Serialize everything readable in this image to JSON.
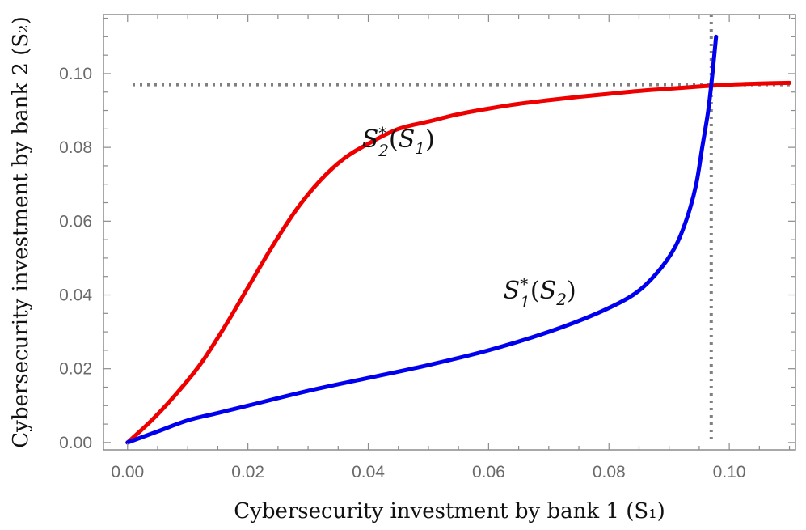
{
  "chart_data": {
    "type": "line",
    "xlabel": "Cybersecurity investment by bank 1 (S₁)",
    "ylabel": "Cybersecurity investment by bank 2 (S₂)",
    "xlim": [
      -0.004,
      0.111
    ],
    "ylim": [
      -0.002,
      0.116
    ],
    "x_ticks": [
      0.0,
      0.02,
      0.04,
      0.06,
      0.08,
      0.1
    ],
    "x_tick_labels": [
      "0.00",
      "0.02",
      "0.04",
      "0.06",
      "0.08",
      "0.10"
    ],
    "y_ticks": [
      0.0,
      0.02,
      0.04,
      0.06,
      0.08,
      0.1
    ],
    "y_tick_labels": [
      "0.00",
      "0.02",
      "0.04",
      "0.06",
      "0.08",
      "0.10"
    ],
    "grid": false,
    "series": [
      {
        "name": "S₂*(S₁)",
        "color": "#ee0000",
        "points": [
          [
            0.0,
            0.0
          ],
          [
            0.004,
            0.006
          ],
          [
            0.008,
            0.013
          ],
          [
            0.012,
            0.021
          ],
          [
            0.016,
            0.031
          ],
          [
            0.02,
            0.042
          ],
          [
            0.024,
            0.053
          ],
          [
            0.028,
            0.063
          ],
          [
            0.032,
            0.071
          ],
          [
            0.036,
            0.077
          ],
          [
            0.04,
            0.081
          ],
          [
            0.045,
            0.085
          ],
          [
            0.05,
            0.087
          ],
          [
            0.055,
            0.089
          ],
          [
            0.06,
            0.0905
          ],
          [
            0.065,
            0.0918
          ],
          [
            0.07,
            0.0928
          ],
          [
            0.075,
            0.0937
          ],
          [
            0.08,
            0.0945
          ],
          [
            0.085,
            0.0953
          ],
          [
            0.09,
            0.0959
          ],
          [
            0.095,
            0.0965
          ],
          [
            0.1,
            0.097
          ],
          [
            0.105,
            0.0973
          ],
          [
            0.11,
            0.0975
          ]
        ]
      },
      {
        "name": "S₁*(S₂)",
        "color": "#0000ee",
        "points": [
          [
            0.0,
            0.0
          ],
          [
            0.005,
            0.003
          ],
          [
            0.01,
            0.006
          ],
          [
            0.015,
            0.008
          ],
          [
            0.02,
            0.01
          ],
          [
            0.03,
            0.014
          ],
          [
            0.04,
            0.0175
          ],
          [
            0.05,
            0.021
          ],
          [
            0.06,
            0.025
          ],
          [
            0.07,
            0.03
          ],
          [
            0.078,
            0.035
          ],
          [
            0.084,
            0.04
          ],
          [
            0.088,
            0.046
          ],
          [
            0.091,
            0.053
          ],
          [
            0.093,
            0.061
          ],
          [
            0.0945,
            0.07
          ],
          [
            0.0955,
            0.08
          ],
          [
            0.0965,
            0.09
          ],
          [
            0.0972,
            0.1
          ],
          [
            0.0978,
            0.11
          ]
        ]
      }
    ],
    "reference_lines": [
      {
        "orientation": "horizontal",
        "value": 0.097,
        "style": "dotted",
        "color": "#808080"
      },
      {
        "orientation": "vertical",
        "value": 0.097,
        "style": "dotted",
        "color": "#808080"
      }
    ],
    "annotations": [
      {
        "base": "S",
        "sub": "2",
        "sup": "*",
        "arg_base": "S",
        "arg_sub": "1",
        "x": 0.045,
        "y": 0.08,
        "anchor": "middle"
      },
      {
        "base": "S",
        "sub": "1",
        "sup": "*",
        "arg_base": "S",
        "arg_sub": "2",
        "x": 0.0685,
        "y": 0.039,
        "anchor": "middle"
      }
    ]
  }
}
